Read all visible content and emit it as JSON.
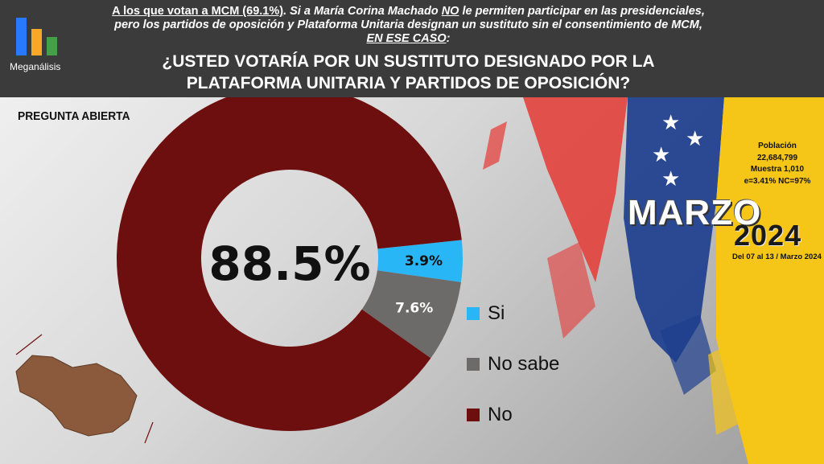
{
  "header": {
    "brand": "Meganálisis",
    "intro_a": "A los que votan a MCM (69.1%)",
    "intro_b": ". Si a María Corina Machado ",
    "intro_no": "NO",
    "intro_c": " le permiten participar en las presidenciales,",
    "intro_line2": "pero los partidos de oposición y Plataforma Unitaria designan un sustituto sin el consentimiento de MCM,",
    "intro_line3": "EN ESE CASO",
    "intro_colon": ":",
    "question_line1": "¿USTED VOTARÍA POR UN SUSTITUTO DESIGNADO POR LA",
    "question_line2": "PLATAFORMA UNITARIA Y PARTIDOS DE OPOSICIÓN?"
  },
  "label": "PREGUNTA ABIERTA",
  "stats": {
    "line1": "Población",
    "line2": "22,684,799",
    "line3": "Muestra 1,010",
    "line4": "e=3.41%  NC=97%"
  },
  "period": {
    "month": "MARZO",
    "year": "2024",
    "dates": "Del 07 al 13 / Marzo 2024"
  },
  "colors": {
    "si": "#29b6f6",
    "no_sabe": "#6d6a6a",
    "no": "#6e0f0f",
    "header_bg": "#3b3b3b"
  },
  "chart_data": {
    "type": "pie",
    "subtype": "donut",
    "center_label": "88.5%",
    "categories": [
      "Si",
      "No sabe",
      "No"
    ],
    "values": [
      3.9,
      7.6,
      88.5
    ],
    "value_labels": [
      "3.9%",
      "7.6%",
      ""
    ],
    "legend_position": "right"
  }
}
